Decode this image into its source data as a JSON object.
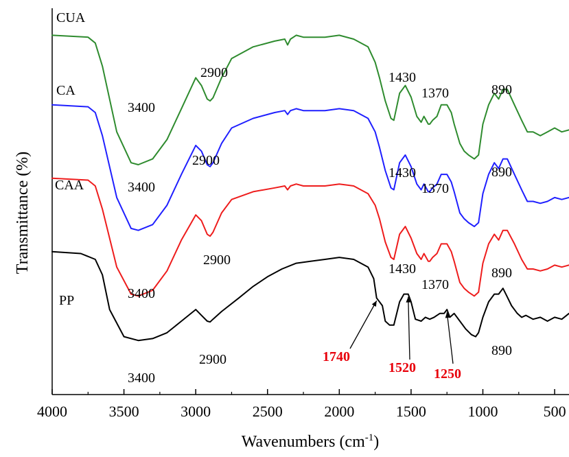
{
  "chart_data": {
    "type": "line",
    "xlabel": "Wavenumbers (cm",
    "xlabel_sup": "-1",
    "xlabel_end": ")",
    "ylabel": "Transmittance (%)",
    "xlim": [
      4000,
      400
    ],
    "ylim": [
      0,
      100
    ],
    "x_ticks": [
      4000,
      3500,
      3000,
      2500,
      2000,
      1500,
      1000,
      500
    ],
    "grid": false,
    "series": [
      {
        "name": "CUA",
        "color": "#2e8b2e",
        "x": [
          4000,
          3750,
          3700,
          3650,
          3550,
          3450,
          3400,
          3300,
          3200,
          3100,
          3000,
          2960,
          2920,
          2900,
          2880,
          2820,
          2750,
          2600,
          2450,
          2380,
          2360,
          2340,
          2300,
          2250,
          2100,
          2000,
          1900,
          1800,
          1750,
          1720,
          1680,
          1640,
          1620,
          1580,
          1540,
          1500,
          1460,
          1430,
          1410,
          1380,
          1370,
          1350,
          1320,
          1290,
          1250,
          1220,
          1200,
          1160,
          1130,
          1100,
          1060,
          1030,
          1000,
          960,
          920,
          890,
          860,
          830,
          780,
          730,
          690,
          650,
          600,
          550,
          500,
          450,
          400
        ],
        "y": [
          93,
          92.5,
          91,
          85,
          68,
          60,
          59.5,
          61,
          66,
          74,
          82,
          80,
          76.5,
          76,
          76.8,
          82,
          87,
          90,
          91.5,
          92,
          90.5,
          92,
          93,
          92.5,
          92.5,
          93,
          92,
          90,
          86,
          82,
          76,
          71.5,
          71,
          78,
          80,
          77,
          72,
          70.5,
          72,
          70,
          70,
          71,
          72,
          75,
          75,
          73,
          70,
          65,
          63,
          62,
          61,
          62,
          70,
          75,
          78,
          76.5,
          79,
          79,
          75,
          71,
          68,
          68,
          67,
          68,
          69,
          68,
          68.5
        ]
      },
      {
        "name": "CA",
        "color": "#1f1fff",
        "x": [
          4000,
          3750,
          3700,
          3650,
          3550,
          3450,
          3400,
          3300,
          3200,
          3100,
          3000,
          2960,
          2920,
          2900,
          2880,
          2820,
          2750,
          2600,
          2450,
          2380,
          2360,
          2340,
          2300,
          2250,
          2100,
          2000,
          1900,
          1800,
          1750,
          1720,
          1680,
          1640,
          1620,
          1580,
          1540,
          1500,
          1460,
          1430,
          1410,
          1380,
          1370,
          1350,
          1320,
          1290,
          1250,
          1220,
          1200,
          1160,
          1130,
          1100,
          1060,
          1030,
          1000,
          960,
          920,
          890,
          860,
          830,
          780,
          730,
          690,
          650,
          600,
          550,
          500,
          450,
          400
        ],
        "y": [
          75,
          74.5,
          73,
          67,
          51,
          43,
          42.5,
          44,
          49,
          57,
          64.5,
          63,
          59.5,
          59,
          60,
          65,
          69,
          71.5,
          73,
          73.5,
          72.5,
          73.5,
          74,
          73.5,
          73.5,
          74,
          73.5,
          71.5,
          68,
          64,
          58,
          53.5,
          53,
          60,
          62,
          59,
          54.5,
          53,
          54.5,
          52.5,
          52.5,
          53.5,
          54.5,
          57,
          57,
          55,
          52.5,
          47,
          45.5,
          44.5,
          43.5,
          44.5,
          52,
          57,
          60,
          58.5,
          61,
          61,
          57,
          53,
          50,
          50,
          49.5,
          50,
          51,
          50.5,
          51
        ]
      },
      {
        "name": "CAA",
        "color": "#ee1c1c",
        "x": [
          4000,
          3750,
          3700,
          3650,
          3550,
          3450,
          3400,
          3300,
          3200,
          3100,
          3000,
          2960,
          2920,
          2900,
          2880,
          2820,
          2750,
          2600,
          2450,
          2380,
          2360,
          2340,
          2300,
          2250,
          2100,
          2000,
          1900,
          1800,
          1750,
          1720,
          1680,
          1640,
          1620,
          1580,
          1540,
          1500,
          1460,
          1430,
          1410,
          1380,
          1370,
          1350,
          1320,
          1290,
          1250,
          1220,
          1200,
          1160,
          1130,
          1100,
          1060,
          1030,
          1000,
          960,
          920,
          890,
          860,
          830,
          780,
          730,
          690,
          650,
          600,
          550,
          500,
          450,
          400
        ],
        "y": [
          56,
          55.5,
          54,
          48,
          33,
          26,
          25.5,
          27,
          32,
          40,
          46.5,
          45,
          41.5,
          41,
          42,
          47,
          50.5,
          52.5,
          53.5,
          54,
          53,
          54,
          54.5,
          54,
          54,
          54.5,
          54,
          52,
          49,
          45.5,
          39.5,
          35.5,
          35,
          41.5,
          43.5,
          40.5,
          36.5,
          35,
          36.5,
          34.5,
          34.5,
          35.5,
          36.5,
          39,
          39,
          37,
          34.5,
          29,
          27.5,
          26.5,
          25.5,
          26.5,
          34,
          39,
          41.5,
          40,
          42.5,
          42.5,
          39,
          35,
          32.5,
          32.5,
          32,
          32.5,
          33.5,
          33,
          33.5
        ]
      },
      {
        "name": "PP",
        "color": "#000000",
        "x": [
          4000,
          3800,
          3700,
          3650,
          3600,
          3500,
          3400,
          3300,
          3200,
          3100,
          3000,
          2960,
          2920,
          2900,
          2880,
          2820,
          2700,
          2600,
          2500,
          2400,
          2300,
          2200,
          2100,
          2000,
          1900,
          1800,
          1760,
          1740,
          1720,
          1700,
          1680,
          1650,
          1620,
          1580,
          1550,
          1520,
          1500,
          1470,
          1430,
          1400,
          1370,
          1340,
          1300,
          1270,
          1250,
          1230,
          1200,
          1160,
          1120,
          1080,
          1050,
          1030,
          1000,
          960,
          920,
          890,
          860,
          840,
          800,
          760,
          730,
          700,
          650,
          600,
          550,
          500,
          450,
          400
        ],
        "y": [
          37,
          36.5,
          35,
          31,
          22,
          15,
          14,
          14.5,
          16,
          19,
          22,
          20.5,
          19,
          18.8,
          19.5,
          21.5,
          25,
          28,
          30.5,
          32.5,
          34,
          34.5,
          35,
          35.5,
          35,
          33,
          30,
          25,
          24,
          23,
          19,
          18,
          18,
          24,
          26,
          26,
          24,
          19.5,
          19,
          20,
          19.5,
          20,
          21,
          21,
          22,
          20,
          21,
          19,
          17,
          15.5,
          15,
          16,
          20,
          24,
          26,
          26,
          27.5,
          26,
          23,
          21,
          20,
          20.5,
          19.5,
          20,
          19,
          20,
          19.5,
          21
        ]
      }
    ],
    "series_labels": [
      "CUA",
      "CA",
      "CAA",
      "PP"
    ],
    "annotations": [
      {
        "text": "3400",
        "series": "CUA"
      },
      {
        "text": "2900",
        "series": "CUA"
      },
      {
        "text": "1430",
        "series": "CUA"
      },
      {
        "text": "1370",
        "series": "CUA"
      },
      {
        "text": "890",
        "series": "CUA"
      },
      {
        "text": "3400",
        "series": "CA"
      },
      {
        "text": "2900",
        "series": "CA"
      },
      {
        "text": "1430",
        "series": "CA"
      },
      {
        "text": "1370",
        "series": "CA"
      },
      {
        "text": "890",
        "series": "CA"
      },
      {
        "text": "3400",
        "series": "CAA"
      },
      {
        "text": "2900",
        "series": "CAA"
      },
      {
        "text": "1430",
        "series": "CAA"
      },
      {
        "text": "1370",
        "series": "CAA"
      },
      {
        "text": "890",
        "series": "CAA"
      },
      {
        "text": "3400",
        "series": "PP"
      },
      {
        "text": "2900",
        "series": "PP"
      },
      {
        "text": "890",
        "series": "PP"
      },
      {
        "text": "1740",
        "series": "PP",
        "highlight": "#e8000b"
      },
      {
        "text": "1520",
        "series": "PP",
        "highlight": "#e8000b"
      },
      {
        "text": "1250",
        "series": "PP",
        "highlight": "#e8000b"
      }
    ]
  }
}
